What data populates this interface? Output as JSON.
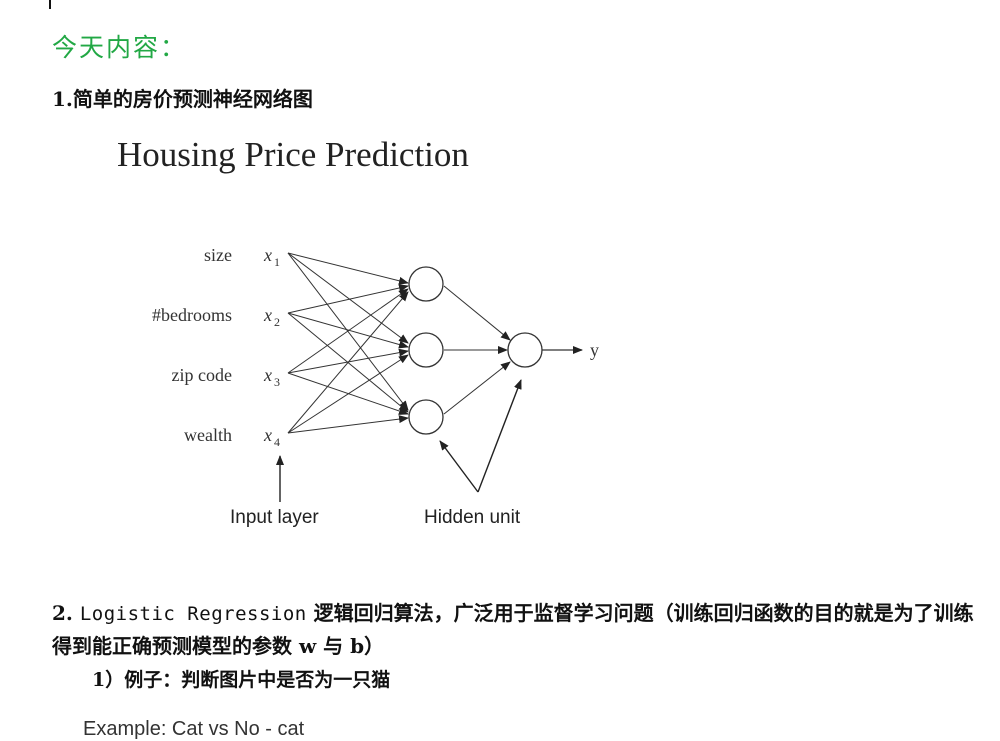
{
  "doc": {
    "heading": "今天内容：",
    "heading_color": "#22a845",
    "section1": "1.简单的房价预测神经网络图",
    "section2_num": "2.",
    "section2_en": "Logistic Regression",
    "section2_zh": "逻辑回归算法，广泛用于监督学习问题（训练回归函数的目的就是为了训练得到能正确预测模型的参数 w 与 b）",
    "sub1": "1）例子：判断图片中是否为一只猫",
    "example": "Example: Cat vs No - cat"
  },
  "figure": {
    "title": "Housing Price Prediction",
    "inputs": [
      {
        "feature": "size",
        "var": "x",
        "sub": "1"
      },
      {
        "feature": "#bedrooms",
        "var": "x",
        "sub": "2"
      },
      {
        "feature": "zip code",
        "var": "x",
        "sub": "3"
      },
      {
        "feature": "wealth",
        "var": "x",
        "sub": "4"
      }
    ],
    "output_label": "y",
    "input_layer_label": "Input layer",
    "hidden_unit_label": "Hidden unit"
  }
}
